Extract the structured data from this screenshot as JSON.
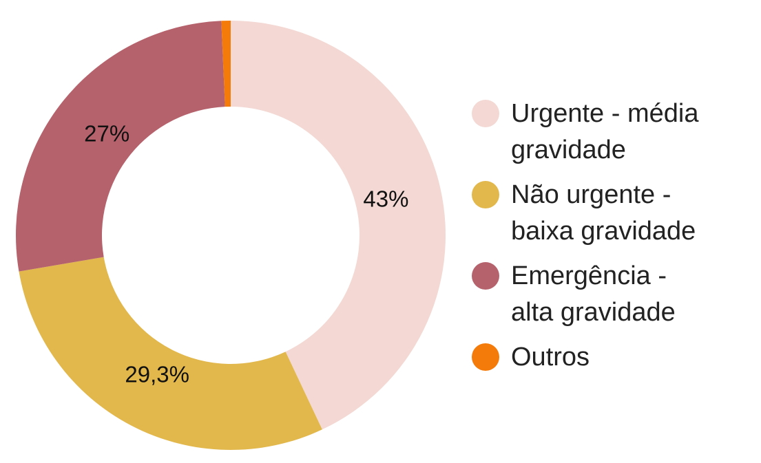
{
  "chart_data": {
    "type": "donut",
    "categories": [
      "Urgente - média gravidade",
      "Não urgente - baixa gravidade",
      "Emergência - alta gravidade",
      "Outros"
    ],
    "values": [
      43,
      29.3,
      27,
      0.7
    ],
    "value_labels": [
      "43%",
      "29,3%",
      "27%",
      null
    ],
    "colors": [
      "#f3d8d3",
      "#e2b74c",
      "#b5626c",
      "#f47a0a"
    ],
    "legend": "right"
  }
}
